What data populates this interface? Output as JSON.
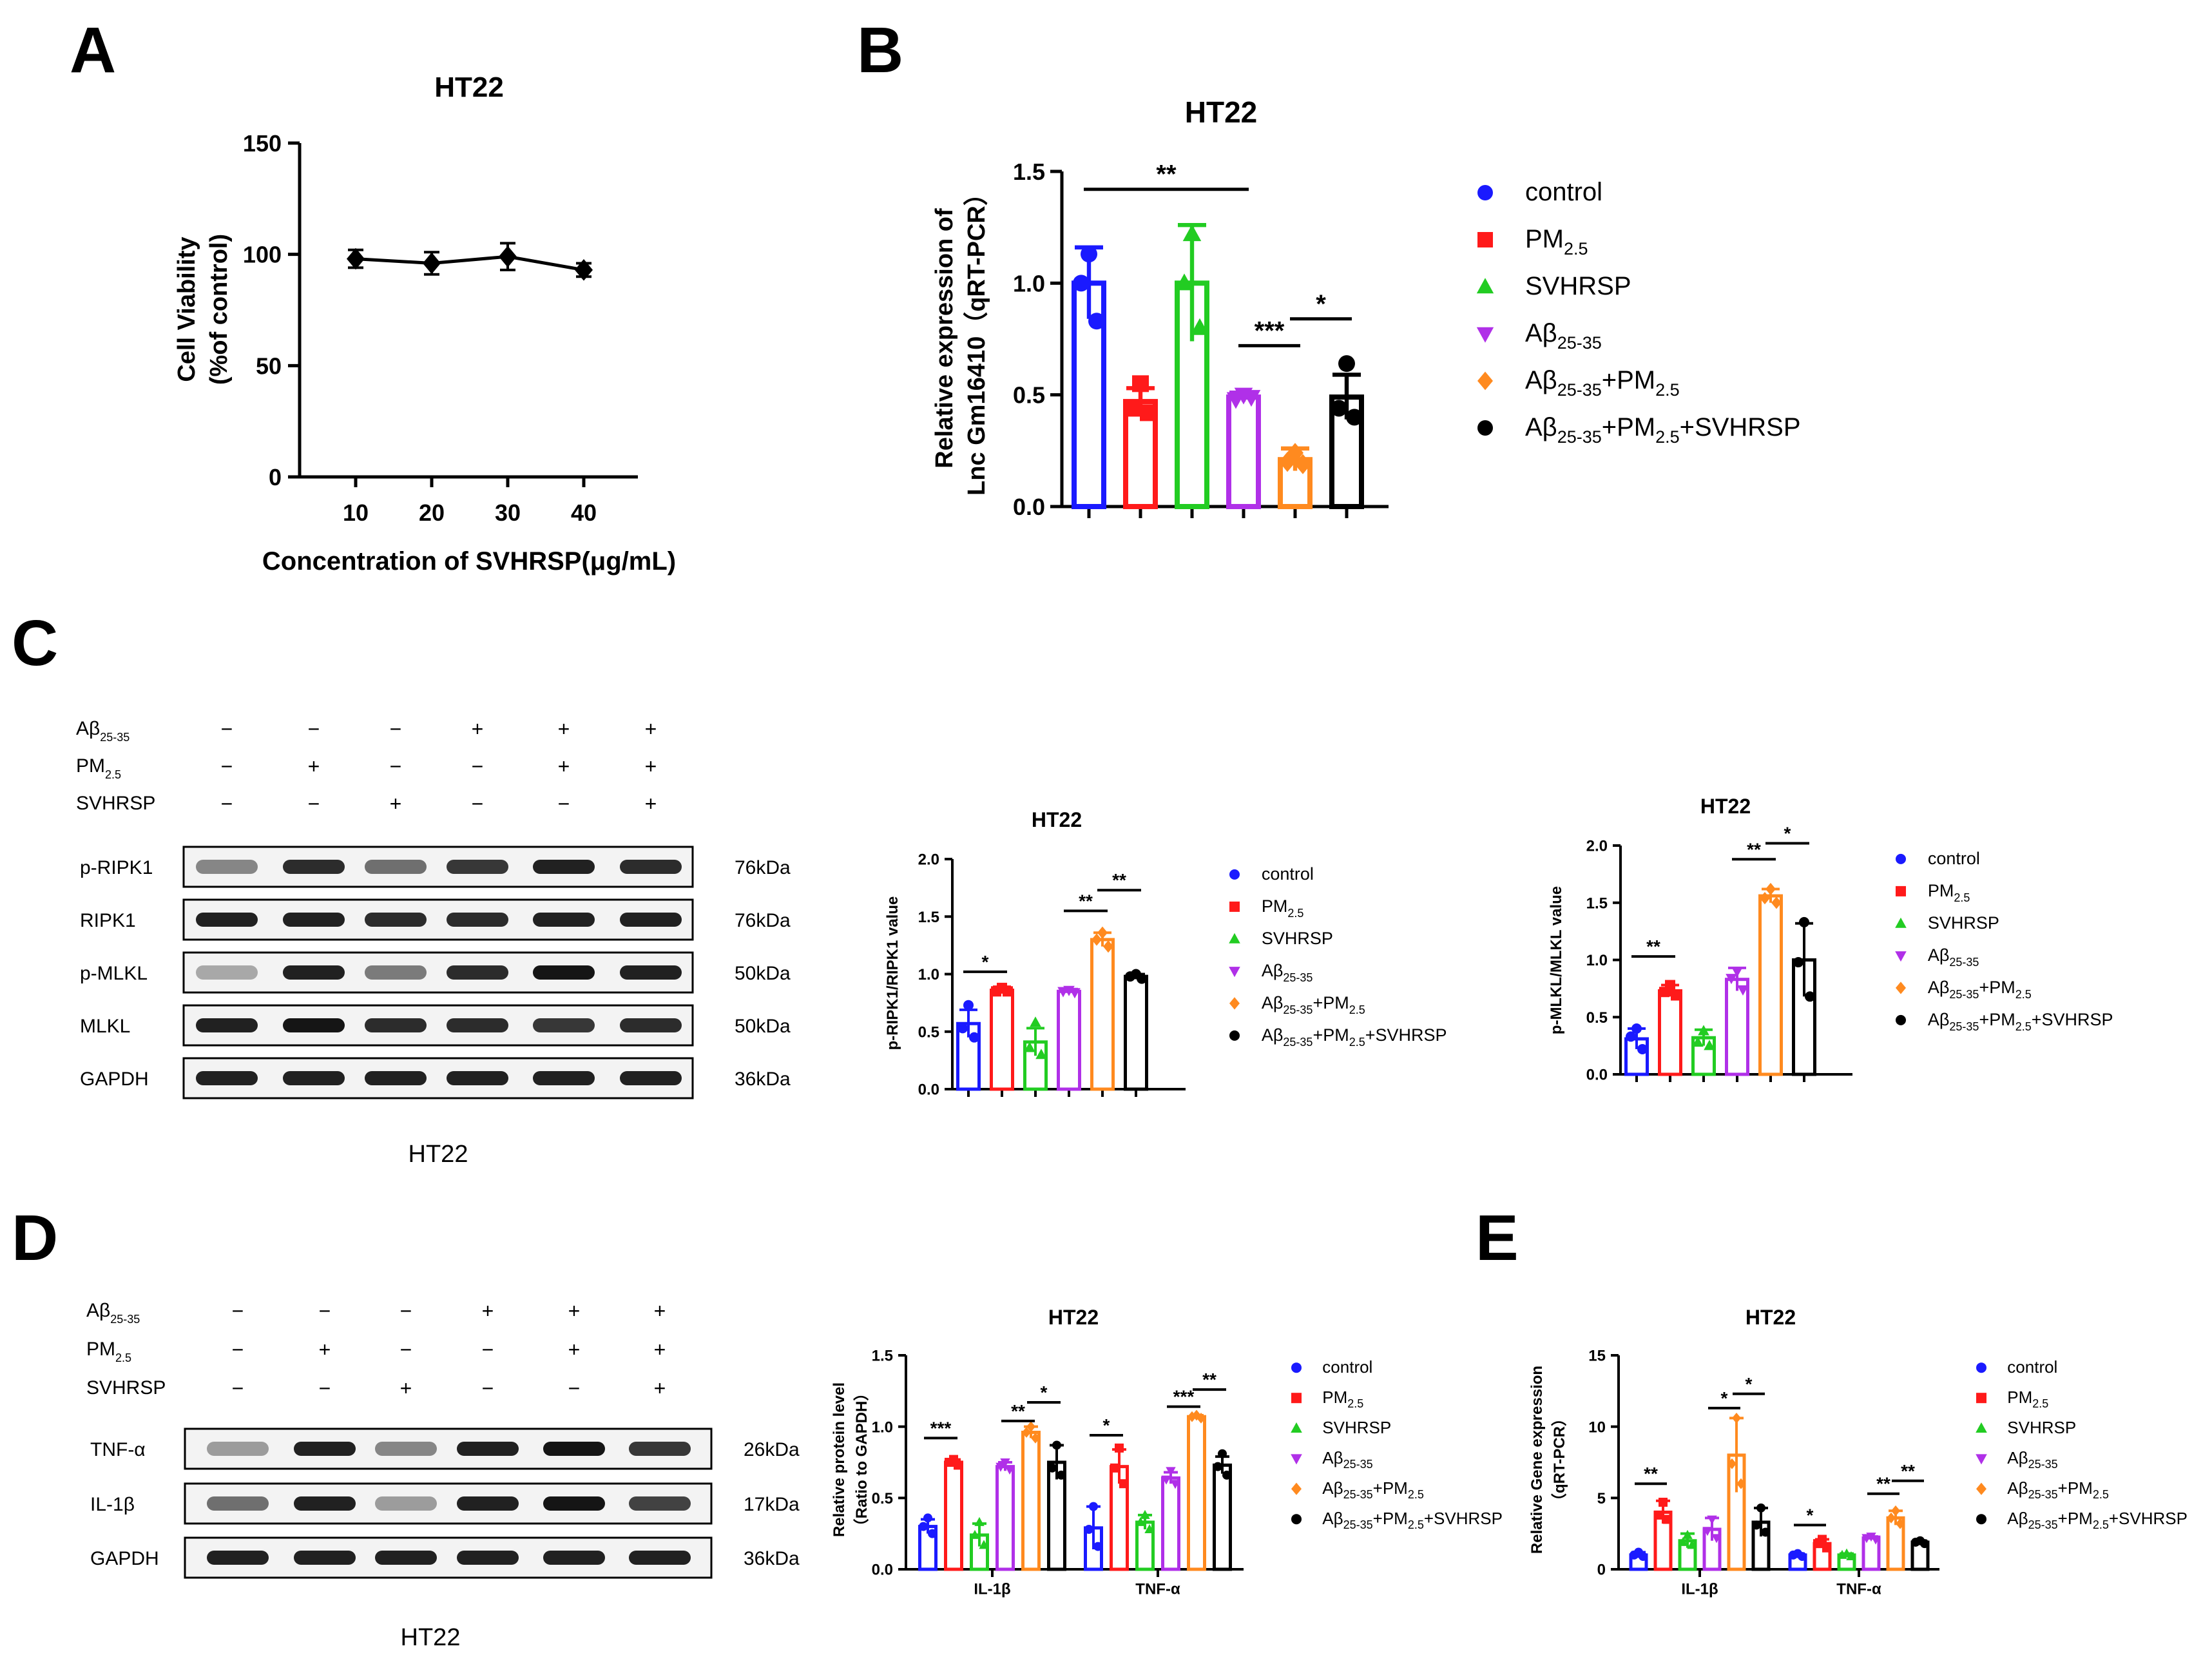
{
  "panel_letters": {
    "a": "A",
    "b": "B",
    "c": "C",
    "d": "D",
    "e": "E"
  },
  "groups": [
    {
      "key": "control",
      "label": "control",
      "color": "#1a1aff",
      "marker": "circle"
    },
    {
      "key": "pm",
      "label": "PM",
      "sub": "2.5",
      "color": "#ff1a1a",
      "marker": "square"
    },
    {
      "key": "svhrsp",
      "label": "SVHRSP",
      "color": "#22cc22",
      "marker": "triangle"
    },
    {
      "key": "ab",
      "label": "Aβ",
      "sub": "25-35",
      "color": "#b030e8",
      "marker": "triangle-down"
    },
    {
      "key": "abpm",
      "label": "Aβ",
      "sub": "25-35",
      "rest": "+PM",
      "sub2": "2.5",
      "color": "#ff8a1f",
      "marker": "diamond"
    },
    {
      "key": "abpmsv",
      "label": "Aβ",
      "sub": "25-35",
      "rest": "+PM",
      "sub2": "2.5",
      "rest2": "+SVHRSP",
      "color": "#000000",
      "marker": "circle"
    }
  ],
  "chart_data": [
    {
      "id": "A",
      "type": "line",
      "title": "HT22",
      "xlabel": "Concentration of SVHRSP(μg/mL)",
      "ylabel": [
        "Cell Viability",
        "(%of control)"
      ],
      "x": [
        10,
        20,
        30,
        40
      ],
      "y": [
        98,
        96,
        99,
        93
      ],
      "err": [
        4,
        5,
        6,
        3
      ],
      "ylim": [
        0,
        150
      ],
      "yticks": [
        0,
        50,
        100,
        150
      ],
      "xticks": [
        "10",
        "20",
        "30",
        "40"
      ]
    },
    {
      "id": "B",
      "type": "bar",
      "title": "HT22",
      "ylabel": [
        "Relative expression of",
        "Lnc Gm16410（qRT-PCR）"
      ],
      "ylim": [
        0,
        1.5
      ],
      "yticks": [
        "0.0",
        "0.5",
        "1.0",
        "1.5"
      ],
      "values": [
        1.0,
        0.47,
        1.0,
        0.49,
        0.21,
        0.49
      ],
      "err": [
        0.16,
        0.06,
        0.26,
        0.02,
        0.05,
        0.1
      ],
      "points": [
        [
          1.13,
          1.0,
          0.83
        ],
        [
          0.55,
          0.44,
          0.42
        ],
        [
          1.22,
          1.0,
          0.8
        ],
        [
          0.5,
          0.48,
          0.49
        ],
        [
          0.24,
          0.2,
          0.19
        ],
        [
          0.64,
          0.44,
          0.4
        ]
      ],
      "sig": [
        {
          "from": 0,
          "to": 3,
          "label": "**",
          "y": 1.42
        },
        {
          "from": 3,
          "to": 4,
          "label": "***",
          "y": 0.72
        },
        {
          "from": 4,
          "to": 5,
          "label": "*",
          "y": 0.84
        }
      ]
    },
    {
      "id": "C1",
      "type": "bar",
      "title": "HT22",
      "ylabel": [
        "p-RIPK1/RIPK1 value"
      ],
      "ylim": [
        0,
        2.0
      ],
      "yticks": [
        "0.0",
        "0.5",
        "1.0",
        "1.5",
        "2.0"
      ],
      "values": [
        0.57,
        0.86,
        0.41,
        0.85,
        1.3,
        0.98
      ],
      "err": [
        0.12,
        0.03,
        0.12,
        0.02,
        0.06,
        0.02
      ],
      "points": [
        [
          0.73,
          0.53,
          0.45
        ],
        [
          0.88,
          0.85,
          0.85
        ],
        [
          0.58,
          0.36,
          0.3
        ],
        [
          0.86,
          0.85,
          0.84
        ],
        [
          1.36,
          1.3,
          1.24
        ],
        [
          1.0,
          0.98,
          0.96
        ]
      ],
      "sig": [
        {
          "from": 0,
          "to": 1,
          "label": "*",
          "y": 1.02
        },
        {
          "from": 3,
          "to": 4,
          "label": "**",
          "y": 1.55
        },
        {
          "from": 4,
          "to": 5,
          "label": "**",
          "y": 1.73
        }
      ]
    },
    {
      "id": "C2",
      "type": "bar",
      "title": "HT22",
      "ylabel": [
        "p-MLKL/MLKL value"
      ],
      "ylim": [
        0,
        2.0
      ],
      "yticks": [
        "0.0",
        "0.5",
        "1.0",
        "1.5",
        "2.0"
      ],
      "values": [
        0.31,
        0.73,
        0.32,
        0.83,
        1.56,
        1.0
      ],
      "err": [
        0.09,
        0.05,
        0.07,
        0.1,
        0.06,
        0.32
      ],
      "points": [
        [
          0.4,
          0.33,
          0.22
        ],
        [
          0.78,
          0.72,
          0.69
        ],
        [
          0.38,
          0.28,
          0.25
        ],
        [
          0.9,
          0.84,
          0.74
        ],
        [
          1.62,
          1.54,
          1.5
        ],
        [
          1.33,
          0.98,
          0.68
        ]
      ],
      "sig": [
        {
          "from": 0,
          "to": 1,
          "label": "**",
          "y": 1.03
        },
        {
          "from": 3,
          "to": 4,
          "label": "**",
          "y": 1.88
        },
        {
          "from": 4,
          "to": 5,
          "label": "*",
          "y": 2.02
        }
      ]
    },
    {
      "id": "D",
      "type": "grouped-bar",
      "title": "HT22",
      "ylabel": [
        "Relative protein level",
        "（Ratio to GAPDH）"
      ],
      "ylim": [
        0,
        1.5
      ],
      "yticks": [
        "0.0",
        "0.5",
        "1.0",
        "1.5"
      ],
      "categories": [
        "IL-1β",
        "TNF-α"
      ],
      "values": [
        [
          0.3,
          0.75,
          0.24,
          0.72,
          0.96,
          0.75
        ],
        [
          0.29,
          0.72,
          0.33,
          0.64,
          1.07,
          0.73
        ]
      ],
      "err": [
        [
          0.05,
          0.02,
          0.08,
          0.03,
          0.04,
          0.12
        ],
        [
          0.15,
          0.12,
          0.05,
          0.04,
          0.01,
          0.06
        ]
      ],
      "points": [
        [
          [
            0.36,
            0.3,
            0.25
          ],
          [
            0.77,
            0.75,
            0.73
          ],
          [
            0.33,
            0.24,
            0.17
          ],
          [
            0.75,
            0.72,
            0.7
          ],
          [
            1.0,
            0.96,
            0.92
          ],
          [
            0.87,
            0.71,
            0.66
          ]
        ],
        [
          [
            0.44,
            0.28,
            0.16
          ],
          [
            0.85,
            0.71,
            0.6
          ],
          [
            0.38,
            0.33,
            0.28
          ],
          [
            0.69,
            0.63,
            0.6
          ],
          [
            1.08,
            1.07,
            1.06
          ],
          [
            0.81,
            0.72,
            0.66
          ]
        ]
      ],
      "sig": [
        {
          "cat": 0,
          "from": 0,
          "to": 1,
          "label": "***",
          "y": 0.92
        },
        {
          "cat": 0,
          "from": 3,
          "to": 4,
          "label": "**",
          "y": 1.04
        },
        {
          "cat": 0,
          "from": 4,
          "to": 5,
          "label": "*",
          "y": 1.17
        },
        {
          "cat": 1,
          "from": 0,
          "to": 1,
          "label": "*",
          "y": 0.94
        },
        {
          "cat": 1,
          "from": 3,
          "to": 4,
          "label": "***",
          "y": 1.14
        },
        {
          "cat": 1,
          "from": 4,
          "to": 5,
          "label": "**",
          "y": 1.26
        }
      ]
    },
    {
      "id": "E",
      "type": "grouped-bar",
      "title": "HT22",
      "ylabel": [
        "Relative Gene expression",
        "（qRT-PCR）"
      ],
      "ylim": [
        0,
        15
      ],
      "yticks": [
        "0",
        "5",
        "10",
        "15"
      ],
      "categories": [
        "IL-1β",
        "TNF-α"
      ],
      "values": [
        [
          1.0,
          4.0,
          2.0,
          2.8,
          8.0,
          3.3
        ],
        [
          1.0,
          1.8,
          1.0,
          2.2,
          3.6,
          1.9
        ]
      ],
      "err": [
        [
          0.2,
          0.8,
          0.5,
          0.8,
          2.6,
          1.0
        ],
        [
          0.1,
          0.3,
          0.1,
          0.1,
          0.5,
          0.1
        ]
      ],
      "points": [
        [
          [
            1.2,
            1.0,
            0.9
          ],
          [
            4.7,
            3.8,
            3.5
          ],
          [
            2.4,
            1.9,
            1.7
          ],
          [
            3.5,
            2.7,
            2.2
          ],
          [
            10.6,
            7.4,
            6.0
          ],
          [
            4.3,
            3.1,
            2.6
          ]
        ],
        [
          [
            1.1,
            1.0,
            0.9
          ],
          [
            2.1,
            1.8,
            1.5
          ],
          [
            1.1,
            1.0,
            0.9
          ],
          [
            2.3,
            2.2,
            2.1
          ],
          [
            4.1,
            3.6,
            3.2
          ],
          [
            2.0,
            1.9,
            1.8
          ]
        ]
      ],
      "sig": [
        {
          "cat": 0,
          "from": 0,
          "to": 1,
          "label": "**",
          "y": 6.0
        },
        {
          "cat": 0,
          "from": 3,
          "to": 4,
          "label": "*",
          "y": 11.3
        },
        {
          "cat": 0,
          "from": 4,
          "to": 5,
          "label": "*",
          "y": 12.3
        },
        {
          "cat": 1,
          "from": 0,
          "to": 1,
          "label": "*",
          "y": 3.1
        },
        {
          "cat": 1,
          "from": 3,
          "to": 4,
          "label": "**",
          "y": 5.3
        },
        {
          "cat": 1,
          "from": 4,
          "to": 5,
          "label": "**",
          "y": 6.2
        }
      ]
    }
  ],
  "blots": {
    "C": {
      "treatments": [
        {
          "name": "Aβ",
          "sub": "25-35",
          "signs": [
            "−",
            "−",
            "−",
            "+",
            "+",
            "+"
          ]
        },
        {
          "name": "PM",
          "sub": "2.5",
          "signs": [
            "−",
            "+",
            "−",
            "−",
            "+",
            "+"
          ]
        },
        {
          "name": "SVHRSP",
          "sub": "",
          "signs": [
            "−",
            "−",
            "+",
            "−",
            "−",
            "+"
          ]
        }
      ],
      "rows": [
        {
          "label": "p-RIPK1",
          "kda": "76kDa",
          "intensity": [
            0.45,
            0.85,
            0.55,
            0.8,
            0.9,
            0.85
          ]
        },
        {
          "label": "RIPK1",
          "kda": "76kDa",
          "intensity": [
            0.9,
            0.9,
            0.85,
            0.85,
            0.9,
            0.9
          ]
        },
        {
          "label": "p-MLKL",
          "kda": "50kDa",
          "intensity": [
            0.3,
            0.9,
            0.5,
            0.85,
            0.95,
            0.9
          ]
        },
        {
          "label": "MLKL",
          "kda": "50kDa",
          "intensity": [
            0.9,
            0.95,
            0.85,
            0.85,
            0.8,
            0.85
          ]
        },
        {
          "label": "GAPDH",
          "kda": "36kDa",
          "intensity": [
            0.9,
            0.9,
            0.9,
            0.9,
            0.9,
            0.9
          ]
        }
      ],
      "caption": "HT22"
    },
    "D": {
      "treatments": [
        {
          "name": "Aβ",
          "sub": "25-35",
          "signs": [
            "−",
            "−",
            "−",
            "+",
            "+",
            "+"
          ]
        },
        {
          "name": "PM",
          "sub": "2.5",
          "signs": [
            "−",
            "+",
            "−",
            "−",
            "+",
            "+"
          ]
        },
        {
          "name": "SVHRSP",
          "sub": "",
          "signs": [
            "−",
            "−",
            "+",
            "−",
            "−",
            "+"
          ]
        }
      ],
      "rows": [
        {
          "label": "TNF-α",
          "kda": "26kDa",
          "intensity": [
            0.35,
            0.9,
            0.45,
            0.9,
            0.95,
            0.8
          ]
        },
        {
          "label": "IL-1β",
          "kda": "17kDa",
          "intensity": [
            0.55,
            0.9,
            0.35,
            0.9,
            0.95,
            0.75
          ]
        },
        {
          "label": "GAPDH",
          "kda": "36kDa",
          "intensity": [
            0.9,
            0.9,
            0.9,
            0.9,
            0.9,
            0.9
          ]
        }
      ],
      "caption": "HT22"
    }
  }
}
